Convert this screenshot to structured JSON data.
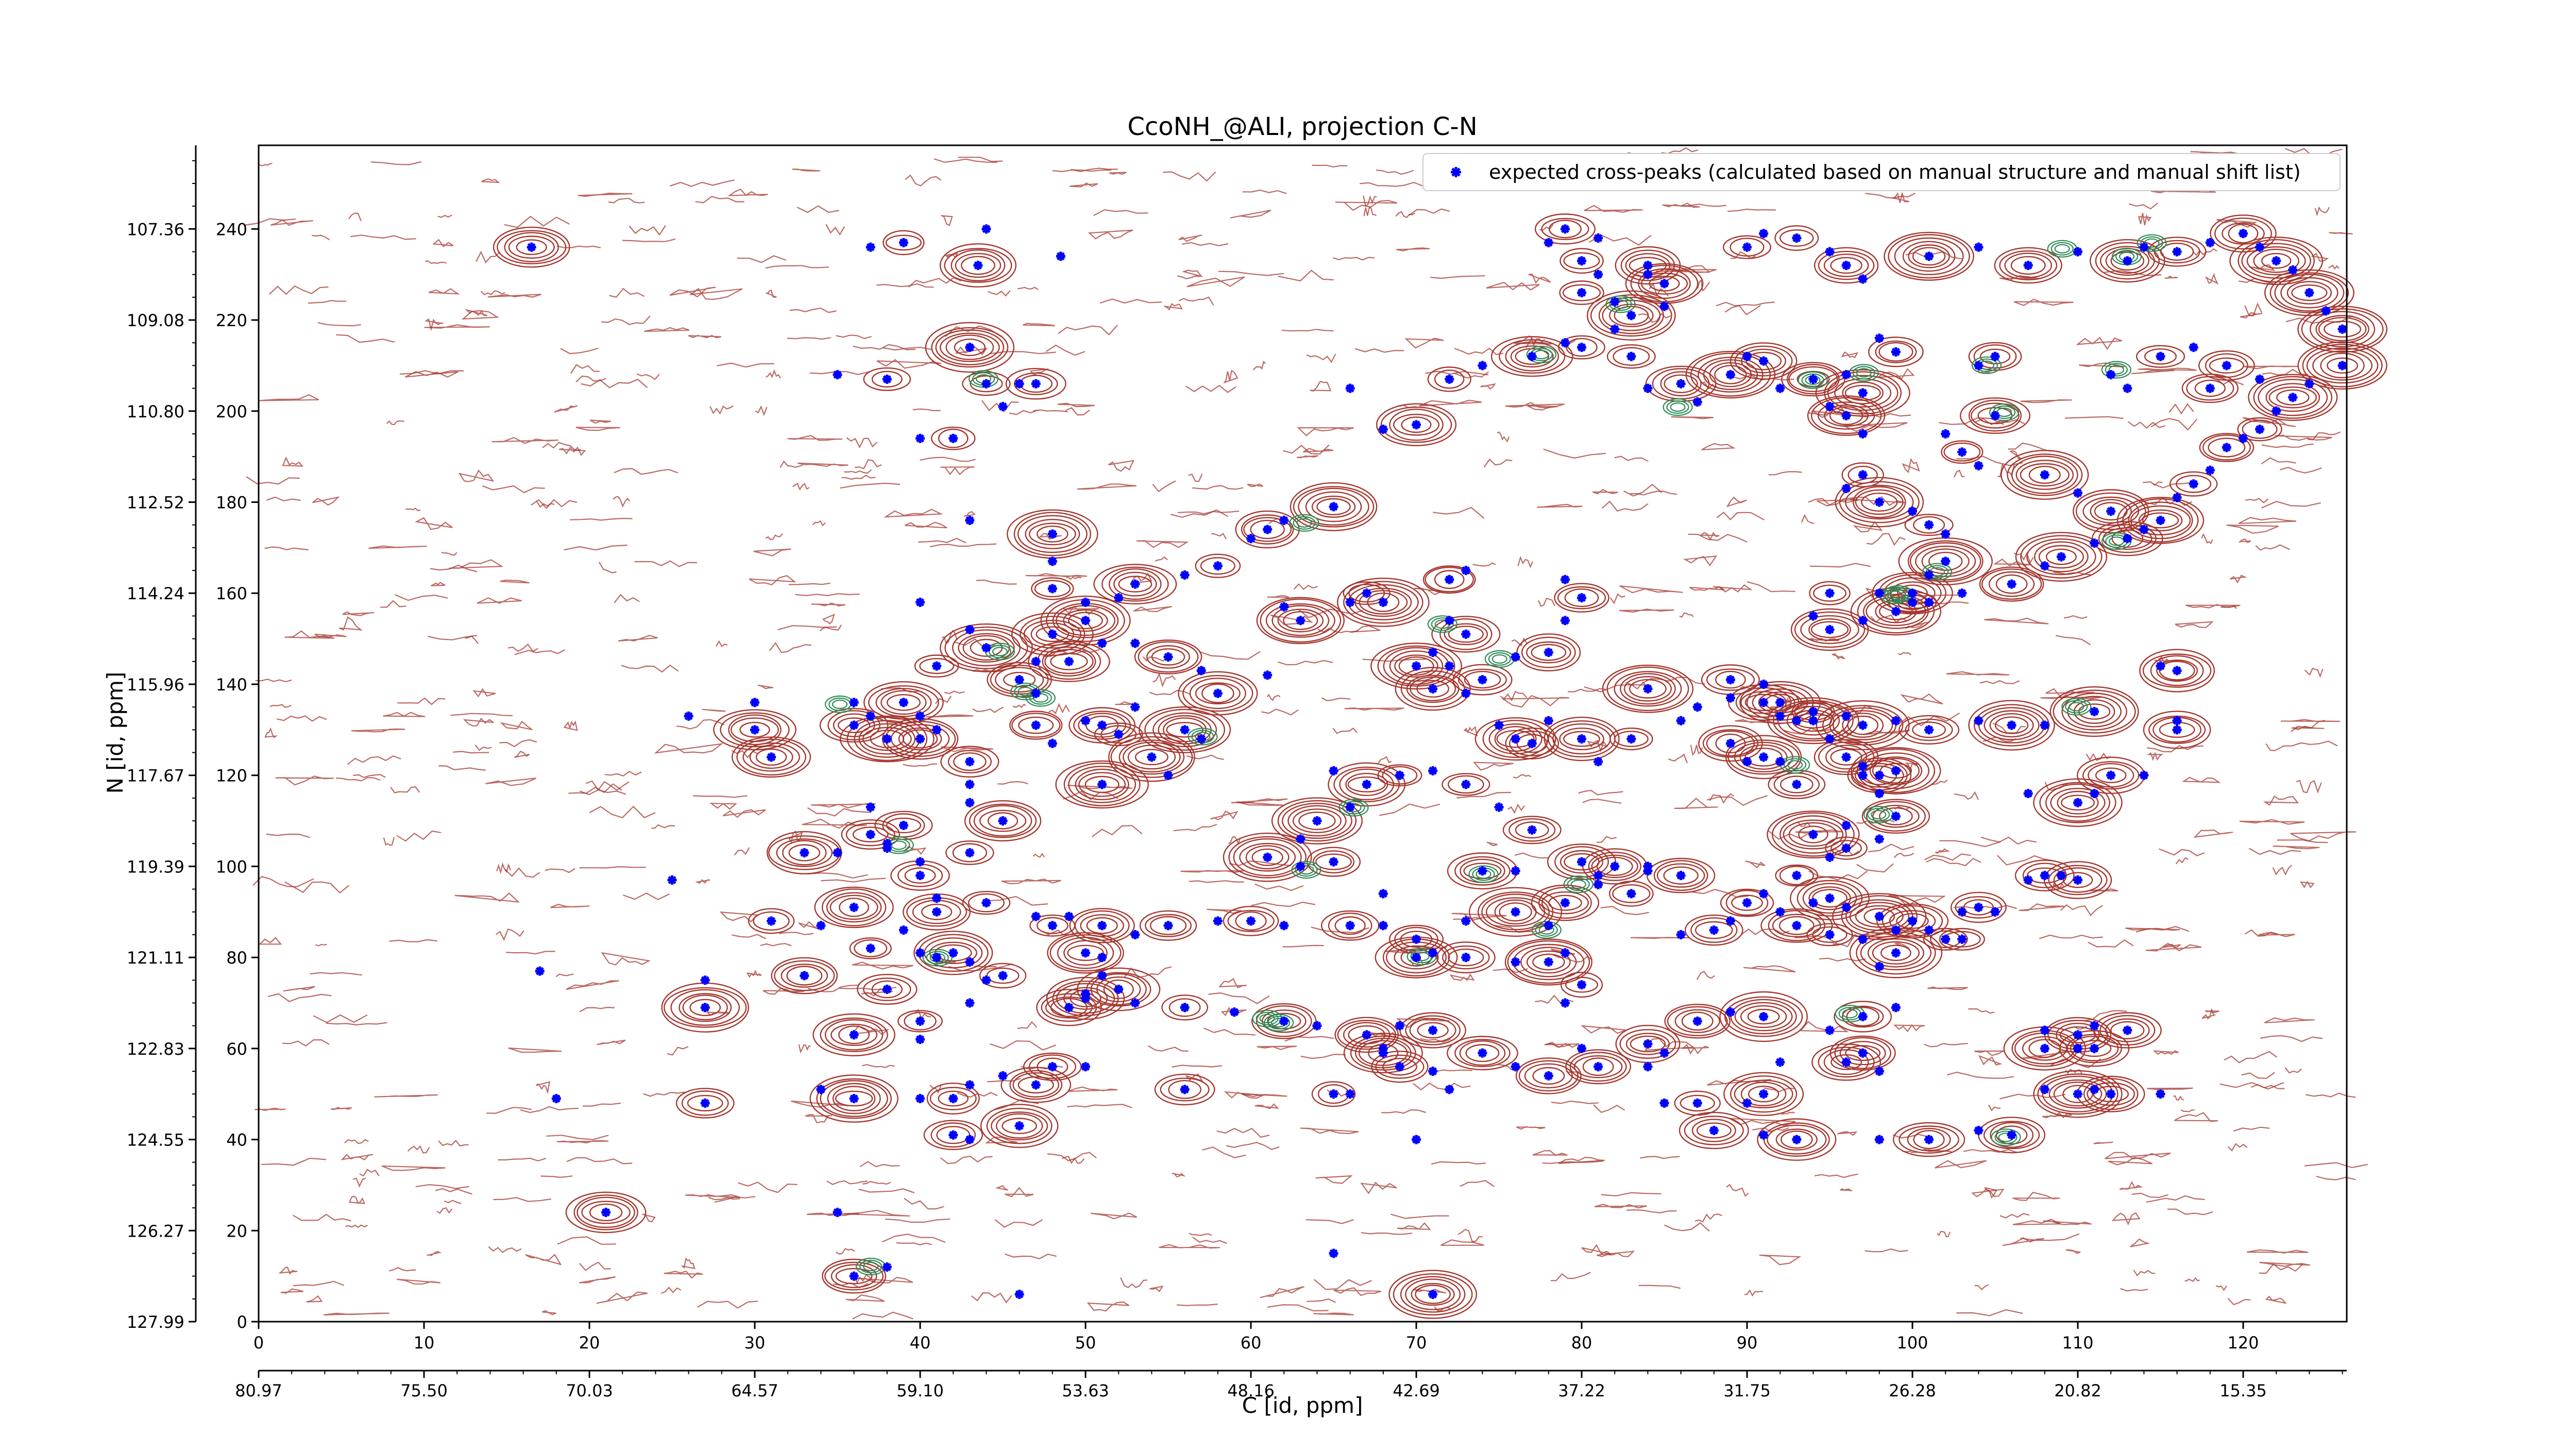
{
  "colors": {
    "positive_contour": "#a5372f",
    "negative_contour": "#2e8b57",
    "peak_marker": "#0000ff",
    "axes": "#000000",
    "background": "#ffffff"
  },
  "chart_data": {
    "type": "scatter",
    "title": "CcoNH_@ALI, projection C-N",
    "xlabel": "C [id, ppm]",
    "ylabel": "N [id, ppm]",
    "legend": {
      "placement": "top-right",
      "label": "expected cross-peaks (calculated based on manual structure and manual shift list)"
    },
    "x_index_range": [
      0,
      127
    ],
    "y_index_range": [
      0,
      255
    ],
    "x_index_ticks": [
      "0",
      "10",
      "20",
      "30",
      "40",
      "50",
      "60",
      "70",
      "80",
      "90",
      "100",
      "110",
      "120"
    ],
    "x_ppm_ticks": [
      "80.97",
      "75.50",
      "70.03",
      "64.57",
      "59.10",
      "53.63",
      "48.16",
      "42.69",
      "37.22",
      "31.75",
      "26.28",
      "20.82",
      "15.35"
    ],
    "y_index_ticks": [
      "0",
      "20",
      "40",
      "60",
      "80",
      "100",
      "120",
      "140",
      "160",
      "180",
      "200",
      "220",
      "240"
    ],
    "y_ppm_ticks": [
      "127.99",
      "126.27",
      "124.55",
      "122.83",
      "121.11",
      "119.39",
      "117.67",
      "115.96",
      "114.24",
      "112.52",
      "110.80",
      "109.08",
      "107.36"
    ],
    "x_ppm_at_index_0": 80.97,
    "x_ppm_per_index": -0.547,
    "y_ppm_at_index_0": 127.99,
    "y_ppm_per_index": -0.086,
    "peaks": [
      [
        16.5,
        236
      ],
      [
        37,
        236
      ],
      [
        39,
        237
      ],
      [
        44,
        240
      ],
      [
        43.5,
        232
      ],
      [
        48.5,
        234
      ],
      [
        43,
        214
      ],
      [
        45,
        201
      ],
      [
        44,
        206
      ],
      [
        46,
        206
      ],
      [
        47,
        206
      ],
      [
        35,
        208
      ],
      [
        38,
        207
      ],
      [
        40,
        194
      ],
      [
        42,
        194
      ],
      [
        43,
        176
      ],
      [
        48,
        173
      ],
      [
        48,
        167
      ],
      [
        48,
        161
      ],
      [
        50,
        158
      ],
      [
        48,
        151
      ],
      [
        43,
        152
      ],
      [
        41,
        144
      ],
      [
        40,
        158
      ],
      [
        46,
        141
      ],
      [
        47,
        138
      ],
      [
        47,
        131
      ],
      [
        50,
        132
      ],
      [
        51,
        131
      ],
      [
        53,
        135
      ],
      [
        56,
        130
      ],
      [
        57,
        128
      ],
      [
        52,
        129
      ],
      [
        48,
        127
      ],
      [
        54,
        124
      ],
      [
        55,
        120
      ],
      [
        51,
        118
      ],
      [
        40,
        133
      ],
      [
        40,
        128
      ],
      [
        41,
        130
      ],
      [
        39,
        136
      ],
      [
        36,
        136
      ],
      [
        36,
        131
      ],
      [
        37,
        133
      ],
      [
        38,
        128
      ],
      [
        30,
        136
      ],
      [
        30,
        130
      ],
      [
        26,
        133
      ],
      [
        31,
        124
      ],
      [
        43,
        118
      ],
      [
        43,
        123
      ],
      [
        43,
        114
      ],
      [
        45,
        110
      ],
      [
        37,
        113
      ],
      [
        39,
        109
      ],
      [
        38,
        105
      ],
      [
        33,
        103
      ],
      [
        35,
        103
      ],
      [
        37,
        107
      ],
      [
        38,
        104
      ],
      [
        43,
        103
      ],
      [
        40,
        101
      ],
      [
        40,
        98
      ],
      [
        25,
        97
      ],
      [
        31,
        88
      ],
      [
        34,
        87
      ],
      [
        36,
        91
      ],
      [
        39,
        86
      ],
      [
        37,
        82
      ],
      [
        40,
        81
      ],
      [
        42,
        81
      ],
      [
        44,
        75
      ],
      [
        45,
        76
      ],
      [
        43,
        79
      ],
      [
        33,
        76
      ],
      [
        27,
        75
      ],
      [
        27,
        69
      ],
      [
        17,
        77
      ],
      [
        36,
        63
      ],
      [
        40,
        62
      ],
      [
        40,
        66
      ],
      [
        43,
        70
      ],
      [
        38,
        73
      ],
      [
        41,
        80
      ],
      [
        41,
        90
      ],
      [
        41,
        93
      ],
      [
        44,
        92
      ],
      [
        47,
        89
      ],
      [
        48,
        87
      ],
      [
        51,
        80
      ],
      [
        50,
        71
      ],
      [
        50,
        56
      ],
      [
        48,
        56
      ],
      [
        45,
        54
      ],
      [
        47,
        52
      ],
      [
        43,
        52
      ],
      [
        42,
        49
      ],
      [
        40,
        49
      ],
      [
        36,
        49
      ],
      [
        34,
        51
      ],
      [
        27,
        48
      ],
      [
        18,
        49
      ],
      [
        21,
        24
      ],
      [
        35,
        24
      ],
      [
        36,
        10
      ],
      [
        38,
        12
      ],
      [
        42,
        41
      ],
      [
        43,
        40
      ],
      [
        46,
        43
      ],
      [
        46,
        6
      ],
      [
        56,
        51
      ],
      [
        65,
        15
      ],
      [
        71,
        6
      ],
      [
        70,
        40
      ],
      [
        69,
        56
      ],
      [
        71,
        55
      ],
      [
        68,
        59
      ],
      [
        66,
        50
      ],
      [
        65,
        50
      ],
      [
        72,
        51
      ],
      [
        71,
        64
      ],
      [
        68,
        60
      ],
      [
        70,
        80
      ],
      [
        71,
        81
      ],
      [
        73,
        80
      ],
      [
        76,
        79
      ],
      [
        78,
        79
      ],
      [
        79,
        81
      ],
      [
        80,
        74
      ],
      [
        79,
        70
      ],
      [
        78,
        54
      ],
      [
        76,
        56
      ],
      [
        74,
        59
      ],
      [
        80,
        60
      ],
      [
        81,
        56
      ],
      [
        84,
        56
      ],
      [
        84,
        61
      ],
      [
        85,
        59
      ],
      [
        87,
        66
      ],
      [
        89,
        68
      ],
      [
        91,
        67
      ],
      [
        95,
        64
      ],
      [
        97,
        67
      ],
      [
        99,
        69
      ],
      [
        97,
        59
      ],
      [
        98,
        55
      ],
      [
        96,
        57
      ],
      [
        92,
        57
      ],
      [
        91,
        50
      ],
      [
        85,
        48
      ],
      [
        87,
        48
      ],
      [
        90,
        48
      ],
      [
        88,
        42
      ],
      [
        91,
        41
      ],
      [
        93,
        40
      ],
      [
        98,
        40
      ],
      [
        101,
        40
      ],
      [
        104,
        42
      ],
      [
        106,
        41
      ],
      [
        108,
        51
      ],
      [
        110,
        50
      ],
      [
        111,
        51
      ],
      [
        112,
        50
      ],
      [
        115,
        50
      ],
      [
        108,
        60
      ],
      [
        110,
        60
      ],
      [
        111,
        60
      ],
      [
        108,
        64
      ],
      [
        110,
        63
      ],
      [
        111,
        65
      ],
      [
        113,
        64
      ],
      [
        98,
        78
      ],
      [
        99,
        81
      ],
      [
        97,
        84
      ],
      [
        95,
        85
      ],
      [
        92,
        90
      ],
      [
        93,
        87
      ],
      [
        94,
        92
      ],
      [
        95,
        93
      ],
      [
        96,
        91
      ],
      [
        98,
        89
      ],
      [
        99,
        86
      ],
      [
        100,
        88
      ],
      [
        101,
        86
      ],
      [
        102,
        84
      ],
      [
        103,
        90
      ],
      [
        104,
        91
      ],
      [
        105,
        90
      ],
      [
        103,
        84
      ],
      [
        107,
        97
      ],
      [
        108,
        98
      ],
      [
        109,
        98
      ],
      [
        110,
        97
      ],
      [
        107,
        116
      ],
      [
        110,
        114
      ],
      [
        111,
        116
      ],
      [
        112,
        120
      ],
      [
        114,
        120
      ],
      [
        116,
        130
      ],
      [
        116,
        132
      ],
      [
        116,
        143
      ],
      [
        115,
        144
      ],
      [
        111,
        134
      ],
      [
        108,
        131
      ],
      [
        106,
        131
      ],
      [
        104,
        132
      ],
      [
        101,
        130
      ],
      [
        99,
        132
      ],
      [
        99,
        121
      ],
      [
        97,
        120
      ],
      [
        93,
        118
      ],
      [
        92,
        123
      ],
      [
        91,
        124
      ],
      [
        90,
        123
      ],
      [
        89,
        127
      ],
      [
        89,
        137
      ],
      [
        91,
        136
      ],
      [
        92,
        133
      ],
      [
        94,
        132
      ],
      [
        95,
        128
      ],
      [
        96,
        124
      ],
      [
        97,
        122
      ],
      [
        98,
        120
      ],
      [
        98,
        116
      ],
      [
        99,
        111
      ],
      [
        98,
        106
      ],
      [
        96,
        104
      ],
      [
        96,
        109
      ],
      [
        94,
        107
      ],
      [
        95,
        102
      ],
      [
        93,
        98
      ],
      [
        91,
        94
      ],
      [
        90,
        92
      ],
      [
        89,
        88
      ],
      [
        88,
        86
      ],
      [
        86,
        85
      ],
      [
        86,
        98
      ],
      [
        84,
        100
      ],
      [
        83,
        94
      ],
      [
        81,
        96
      ],
      [
        79,
        92
      ],
      [
        78,
        87
      ],
      [
        76,
        90
      ],
      [
        73,
        88
      ],
      [
        74,
        99
      ],
      [
        76,
        99
      ],
      [
        80,
        101
      ],
      [
        81,
        98
      ],
      [
        82,
        100
      ],
      [
        84,
        99
      ],
      [
        77,
        108
      ],
      [
        75,
        113
      ],
      [
        73,
        118
      ],
      [
        71,
        121
      ],
      [
        67,
        118
      ],
      [
        65,
        121
      ],
      [
        69,
        120
      ],
      [
        66,
        113
      ],
      [
        64,
        110
      ],
      [
        63,
        106
      ],
      [
        61,
        102
      ],
      [
        63,
        100
      ],
      [
        65,
        101
      ],
      [
        68,
        94
      ],
      [
        66,
        87
      ],
      [
        68,
        87
      ],
      [
        70,
        84
      ],
      [
        62,
        87
      ],
      [
        60,
        88
      ],
      [
        58,
        88
      ],
      [
        55,
        87
      ],
      [
        53,
        85
      ],
      [
        51,
        87
      ],
      [
        49,
        89
      ],
      [
        50,
        81
      ],
      [
        51,
        76
      ],
      [
        52,
        73
      ],
      [
        50,
        72
      ],
      [
        49,
        69
      ],
      [
        53,
        70
      ],
      [
        56,
        69
      ],
      [
        59,
        68
      ],
      [
        62,
        66
      ],
      [
        64,
        65
      ],
      [
        67,
        63
      ],
      [
        69,
        65
      ],
      [
        76,
        128
      ],
      [
        75,
        131
      ],
      [
        77,
        127
      ],
      [
        78,
        132
      ],
      [
        80,
        128
      ],
      [
        81,
        123
      ],
      [
        83,
        128
      ],
      [
        86,
        132
      ],
      [
        84,
        139
      ],
      [
        87,
        135
      ],
      [
        89,
        141
      ],
      [
        91,
        140
      ],
      [
        92,
        136
      ],
      [
        93,
        132
      ],
      [
        94,
        134
      ],
      [
        96,
        133
      ],
      [
        97,
        131
      ],
      [
        73,
        138
      ],
      [
        74,
        141
      ],
      [
        72,
        144
      ],
      [
        71,
        139
      ],
      [
        71,
        147
      ],
      [
        73,
        151
      ],
      [
        72,
        154
      ],
      [
        72,
        163
      ],
      [
        73,
        165
      ],
      [
        68,
        158
      ],
      [
        66,
        158
      ],
      [
        67,
        160
      ],
      [
        79,
        163
      ],
      [
        80,
        159
      ],
      [
        79,
        154
      ],
      [
        78,
        147
      ],
      [
        76,
        146
      ],
      [
        70,
        144
      ],
      [
        61,
        142
      ],
      [
        58,
        138
      ],
      [
        62,
        157
      ],
      [
        63,
        154
      ],
      [
        57,
        143
      ],
      [
        55,
        146
      ],
      [
        53,
        149
      ],
      [
        50,
        154
      ],
      [
        51,
        149
      ],
      [
        49,
        145
      ],
      [
        47,
        145
      ],
      [
        44,
        148
      ],
      [
        52,
        159
      ],
      [
        53,
        162
      ],
      [
        56,
        164
      ],
      [
        58,
        166
      ],
      [
        60,
        172
      ],
      [
        61,
        174
      ],
      [
        62,
        176
      ],
      [
        65,
        179
      ],
      [
        68,
        196
      ],
      [
        70,
        197
      ],
      [
        66,
        205
      ],
      [
        72,
        207
      ],
      [
        74,
        210
      ],
      [
        77,
        212
      ],
      [
        79,
        215
      ],
      [
        80,
        214
      ],
      [
        82,
        218
      ],
      [
        83,
        221
      ],
      [
        85,
        223
      ],
      [
        85,
        228
      ],
      [
        84,
        230
      ],
      [
        84,
        232
      ],
      [
        81,
        230
      ],
      [
        80,
        233
      ],
      [
        78,
        237
      ],
      [
        79,
        240
      ],
      [
        81,
        238
      ],
      [
        80,
        226
      ],
      [
        82,
        224
      ],
      [
        83,
        212
      ],
      [
        84,
        205
      ],
      [
        86,
        206
      ],
      [
        87,
        202
      ],
      [
        89,
        208
      ],
      [
        90,
        212
      ],
      [
        91,
        211
      ],
      [
        92,
        205
      ],
      [
        94,
        207
      ],
      [
        96,
        208
      ],
      [
        97,
        204
      ],
      [
        95,
        201
      ],
      [
        96,
        199
      ],
      [
        97,
        195
      ],
      [
        97,
        186
      ],
      [
        96,
        183
      ],
      [
        98,
        180
      ],
      [
        100,
        178
      ],
      [
        101,
        175
      ],
      [
        102,
        173
      ],
      [
        102,
        167
      ],
      [
        101,
        164
      ],
      [
        100,
        160
      ],
      [
        101,
        158
      ],
      [
        99,
        156
      ],
      [
        97,
        154
      ],
      [
        95,
        152
      ],
      [
        94,
        155
      ],
      [
        95,
        160
      ],
      [
        98,
        160
      ],
      [
        100,
        158
      ],
      [
        103,
        160
      ],
      [
        106,
        162
      ],
      [
        108,
        166
      ],
      [
        109,
        168
      ],
      [
        111,
        171
      ],
      [
        113,
        172
      ],
      [
        114,
        174
      ],
      [
        115,
        176
      ],
      [
        116,
        181
      ],
      [
        117,
        184
      ],
      [
        118,
        187
      ],
      [
        119,
        192
      ],
      [
        120,
        194
      ],
      [
        121,
        196
      ],
      [
        122,
        200
      ],
      [
        123,
        203
      ],
      [
        124,
        206
      ],
      [
        126,
        210
      ],
      [
        127,
        214
      ],
      [
        126,
        218
      ],
      [
        125,
        222
      ],
      [
        124,
        226
      ],
      [
        123,
        231
      ],
      [
        122,
        233
      ],
      [
        121,
        236
      ],
      [
        120,
        239
      ],
      [
        118,
        237
      ],
      [
        116,
        235
      ],
      [
        114,
        236
      ],
      [
        113,
        233
      ],
      [
        110,
        235
      ],
      [
        107,
        232
      ],
      [
        104,
        236
      ],
      [
        101,
        234
      ],
      [
        97,
        229
      ],
      [
        96,
        232
      ],
      [
        95,
        235
      ],
      [
        93,
        238
      ],
      [
        91,
        239
      ],
      [
        90,
        236
      ],
      [
        98,
        216
      ],
      [
        99,
        213
      ],
      [
        104,
        210
      ],
      [
        105,
        212
      ],
      [
        112,
        208
      ],
      [
        115,
        212
      ],
      [
        117,
        214
      ],
      [
        119,
        210
      ],
      [
        121,
        207
      ],
      [
        118,
        205
      ],
      [
        113,
        205
      ],
      [
        105,
        199
      ],
      [
        102,
        195
      ],
      [
        103,
        191
      ],
      [
        104,
        188
      ],
      [
        108,
        186
      ],
      [
        110,
        182
      ],
      [
        112,
        178
      ]
    ]
  }
}
